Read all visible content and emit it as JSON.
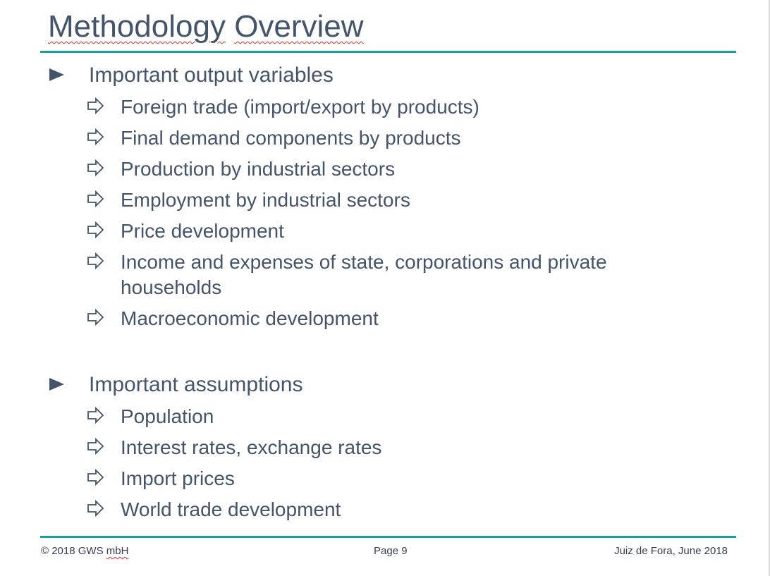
{
  "title": {
    "word1": "Methodology",
    "word2": "Overview"
  },
  "sections": [
    {
      "heading": "Important output variables",
      "items": [
        "Foreign trade (import/export by products)",
        "Final demand components by products",
        "Production by industrial sectors",
        "Employment by industrial sectors",
        "Price development",
        "Income and expenses of state, corporations and private households",
        "Macroeconomic development"
      ]
    },
    {
      "heading": "Important assumptions",
      "items": [
        "Population",
        "Interest rates, exchange rates",
        "Import prices",
        "World trade development"
      ]
    }
  ],
  "footer": {
    "copyright_prefix": "© 2018 GWS ",
    "copyright_company": "mbH",
    "page": "Page 9",
    "location_date": "Juiz de Fora, June 2018"
  },
  "colors": {
    "text": "#44546a",
    "accent_rule": "#1a9ea0",
    "spellcheck": "#d03030"
  },
  "icons": {
    "level1_bullet": "right-triangle-icon",
    "level2_bullet": "outline-right-arrow-icon"
  }
}
